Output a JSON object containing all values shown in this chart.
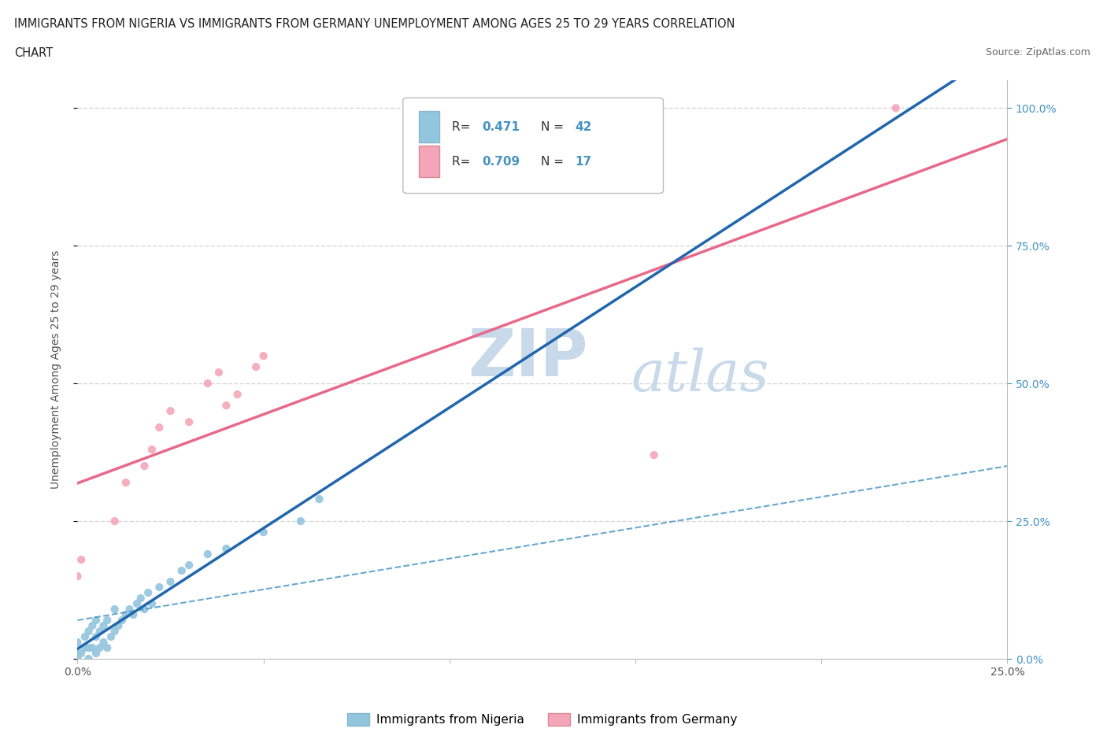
{
  "title_line1": "IMMIGRANTS FROM NIGERIA VS IMMIGRANTS FROM GERMANY UNEMPLOYMENT AMONG AGES 25 TO 29 YEARS CORRELATION",
  "title_line2": "CHART",
  "source_text": "Source: ZipAtlas.com",
  "ylabel": "Unemployment Among Ages 25 to 29 years",
  "xlim": [
    0.0,
    0.25
  ],
  "ylim": [
    0.0,
    1.05
  ],
  "nigeria_R": 0.471,
  "nigeria_N": 42,
  "germany_R": 0.709,
  "germany_N": 17,
  "nigeria_color": "#92c5de",
  "germany_color": "#f4a6b8",
  "nigeria_line_color": "#2166ac",
  "germany_line_color": "#e8698a",
  "nigeria_dash_color": "#4393c3",
  "nigeria_scatter_x": [
    0.0,
    0.0,
    0.0,
    0.001,
    0.002,
    0.002,
    0.003,
    0.003,
    0.003,
    0.004,
    0.004,
    0.005,
    0.005,
    0.005,
    0.006,
    0.006,
    0.007,
    0.007,
    0.008,
    0.008,
    0.009,
    0.01,
    0.01,
    0.011,
    0.012,
    0.013,
    0.014,
    0.015,
    0.016,
    0.017,
    0.018,
    0.019,
    0.02,
    0.022,
    0.025,
    0.028,
    0.03,
    0.035,
    0.04,
    0.05,
    0.06,
    0.065
  ],
  "nigeria_scatter_y": [
    0.0,
    0.01,
    0.03,
    0.01,
    0.02,
    0.04,
    0.0,
    0.02,
    0.05,
    0.02,
    0.06,
    0.01,
    0.04,
    0.07,
    0.02,
    0.05,
    0.03,
    0.06,
    0.02,
    0.07,
    0.04,
    0.05,
    0.09,
    0.06,
    0.07,
    0.08,
    0.09,
    0.08,
    0.1,
    0.11,
    0.09,
    0.12,
    0.1,
    0.13,
    0.14,
    0.16,
    0.17,
    0.19,
    0.2,
    0.23,
    0.25,
    0.29
  ],
  "germany_scatter_x": [
    0.0,
    0.001,
    0.01,
    0.013,
    0.018,
    0.02,
    0.022,
    0.025,
    0.03,
    0.035,
    0.038,
    0.04,
    0.043,
    0.048,
    0.05,
    0.155,
    0.22
  ],
  "germany_scatter_y": [
    0.15,
    0.18,
    0.25,
    0.32,
    0.35,
    0.38,
    0.42,
    0.45,
    0.43,
    0.5,
    0.52,
    0.46,
    0.48,
    0.53,
    0.55,
    0.37,
    1.0
  ],
  "watermark_zip": "ZIP",
  "watermark_atlas": "atlas",
  "watermark_color": "#c8daea",
  "legend_nigeria_label": "Immigrants from Nigeria",
  "legend_germany_label": "Immigrants from Germany",
  "background_color": "#ffffff",
  "grid_color": "#cccccc"
}
